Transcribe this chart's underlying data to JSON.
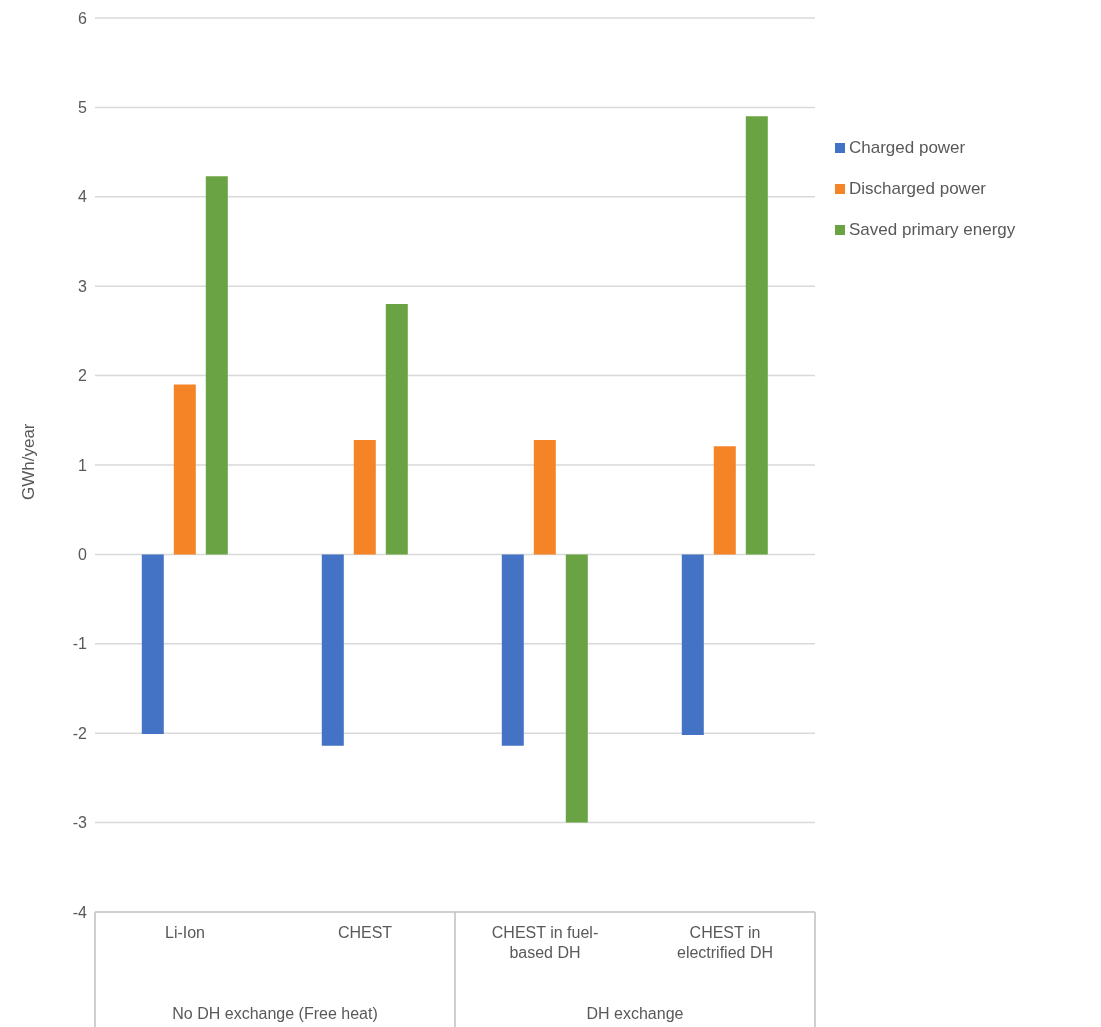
{
  "chart_data": {
    "type": "bar",
    "ylabel": "GWh/year",
    "categories": [
      "Li-Ion",
      "CHEST",
      "CHEST in fuel-based DH",
      "CHEST in electrified DH"
    ],
    "series": [
      {
        "name": "Charged power",
        "color": "#4472c4",
        "values": [
          -2.01,
          -2.14,
          -2.14,
          -2.02
        ]
      },
      {
        "name": "Discharged power",
        "color": "#f58426",
        "values": [
          1.9,
          1.28,
          1.28,
          1.21
        ]
      },
      {
        "name": "Saved primary energy",
        "color": "#6aa343",
        "values": [
          4.23,
          2.8,
          -3.0,
          4.9
        ]
      }
    ],
    "annotations": [
      "No DH exchange (Free heat)",
      "DH exchange"
    ],
    "ylim": [
      -4,
      6
    ],
    "yticks": [
      -4,
      -3,
      -2,
      -1,
      0,
      1,
      2,
      3,
      4,
      5,
      6
    ],
    "grid": "y",
    "legend": "right"
  }
}
